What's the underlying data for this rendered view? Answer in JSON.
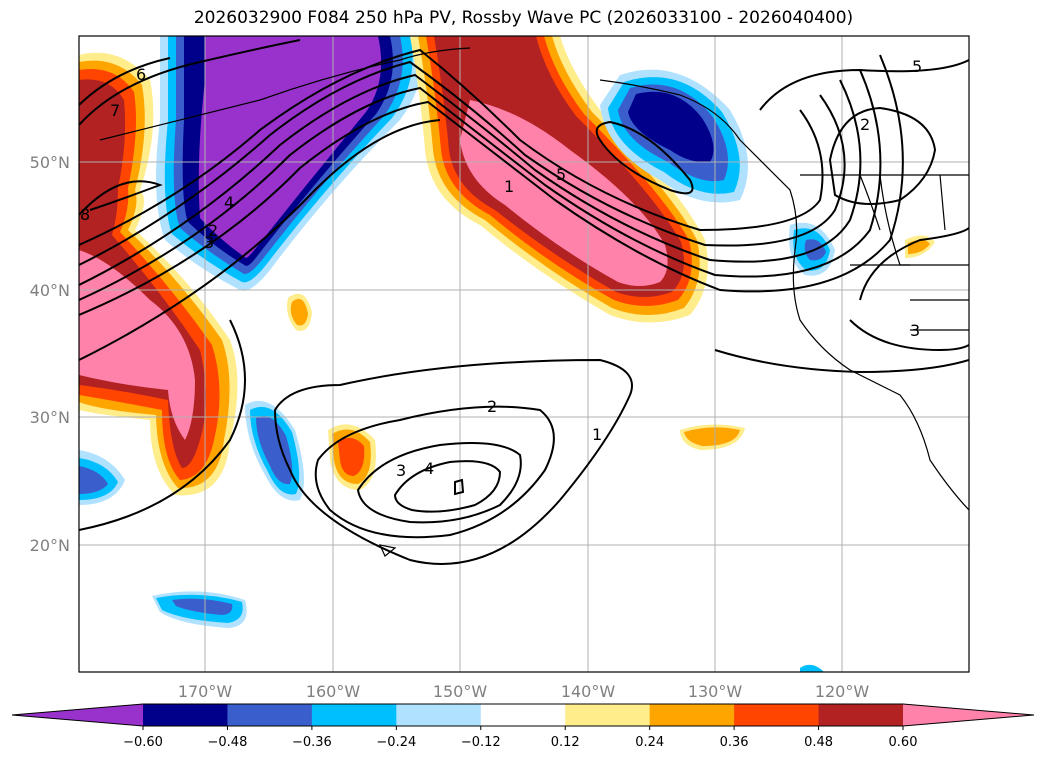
{
  "title": "2026032900 F084 250 hPa PV, Rossby Wave PC (2026033100 - 2026040400)",
  "lat_labels": [
    "50°N",
    "40°N",
    "30°N",
    "20°N"
  ],
  "lon_labels": [
    "170°W",
    "160°W",
    "150°W",
    "140°W",
    "130°W",
    "120°W"
  ],
  "colorbar": {
    "colors": [
      "#9932cc",
      "#00008b",
      "#3a5fcd",
      "#00bfff",
      "#b0e2ff",
      "#ffffff",
      "#ffec8b",
      "#ffa500",
      "#ff4500",
      "#b22222",
      "#ff82ab"
    ],
    "labels": [
      "−0.60",
      "−0.48",
      "−0.36",
      "−0.24",
      "−0.12",
      "0.12",
      "0.24",
      "0.36",
      "0.48",
      "0.60"
    ],
    "extend": "both"
  },
  "contour_labels": [
    {
      "id": "c6",
      "text": "6"
    },
    {
      "id": "c7",
      "text": "7"
    },
    {
      "id": "c8",
      "text": "8"
    },
    {
      "id": "c4a",
      "text": "4"
    },
    {
      "id": "c3a",
      "text": "3"
    },
    {
      "id": "c2a",
      "text": "2"
    },
    {
      "id": "c1a",
      "text": "1"
    },
    {
      "id": "c5a",
      "text": "5"
    },
    {
      "id": "c2b",
      "text": "2"
    },
    {
      "id": "c1b",
      "text": "1"
    },
    {
      "id": "c3b",
      "text": "3"
    },
    {
      "id": "c4b",
      "text": "4"
    },
    {
      "id": "c5b",
      "text": "5"
    },
    {
      "id": "c2c",
      "text": "2"
    },
    {
      "id": "c3c",
      "text": "3"
    }
  ]
}
